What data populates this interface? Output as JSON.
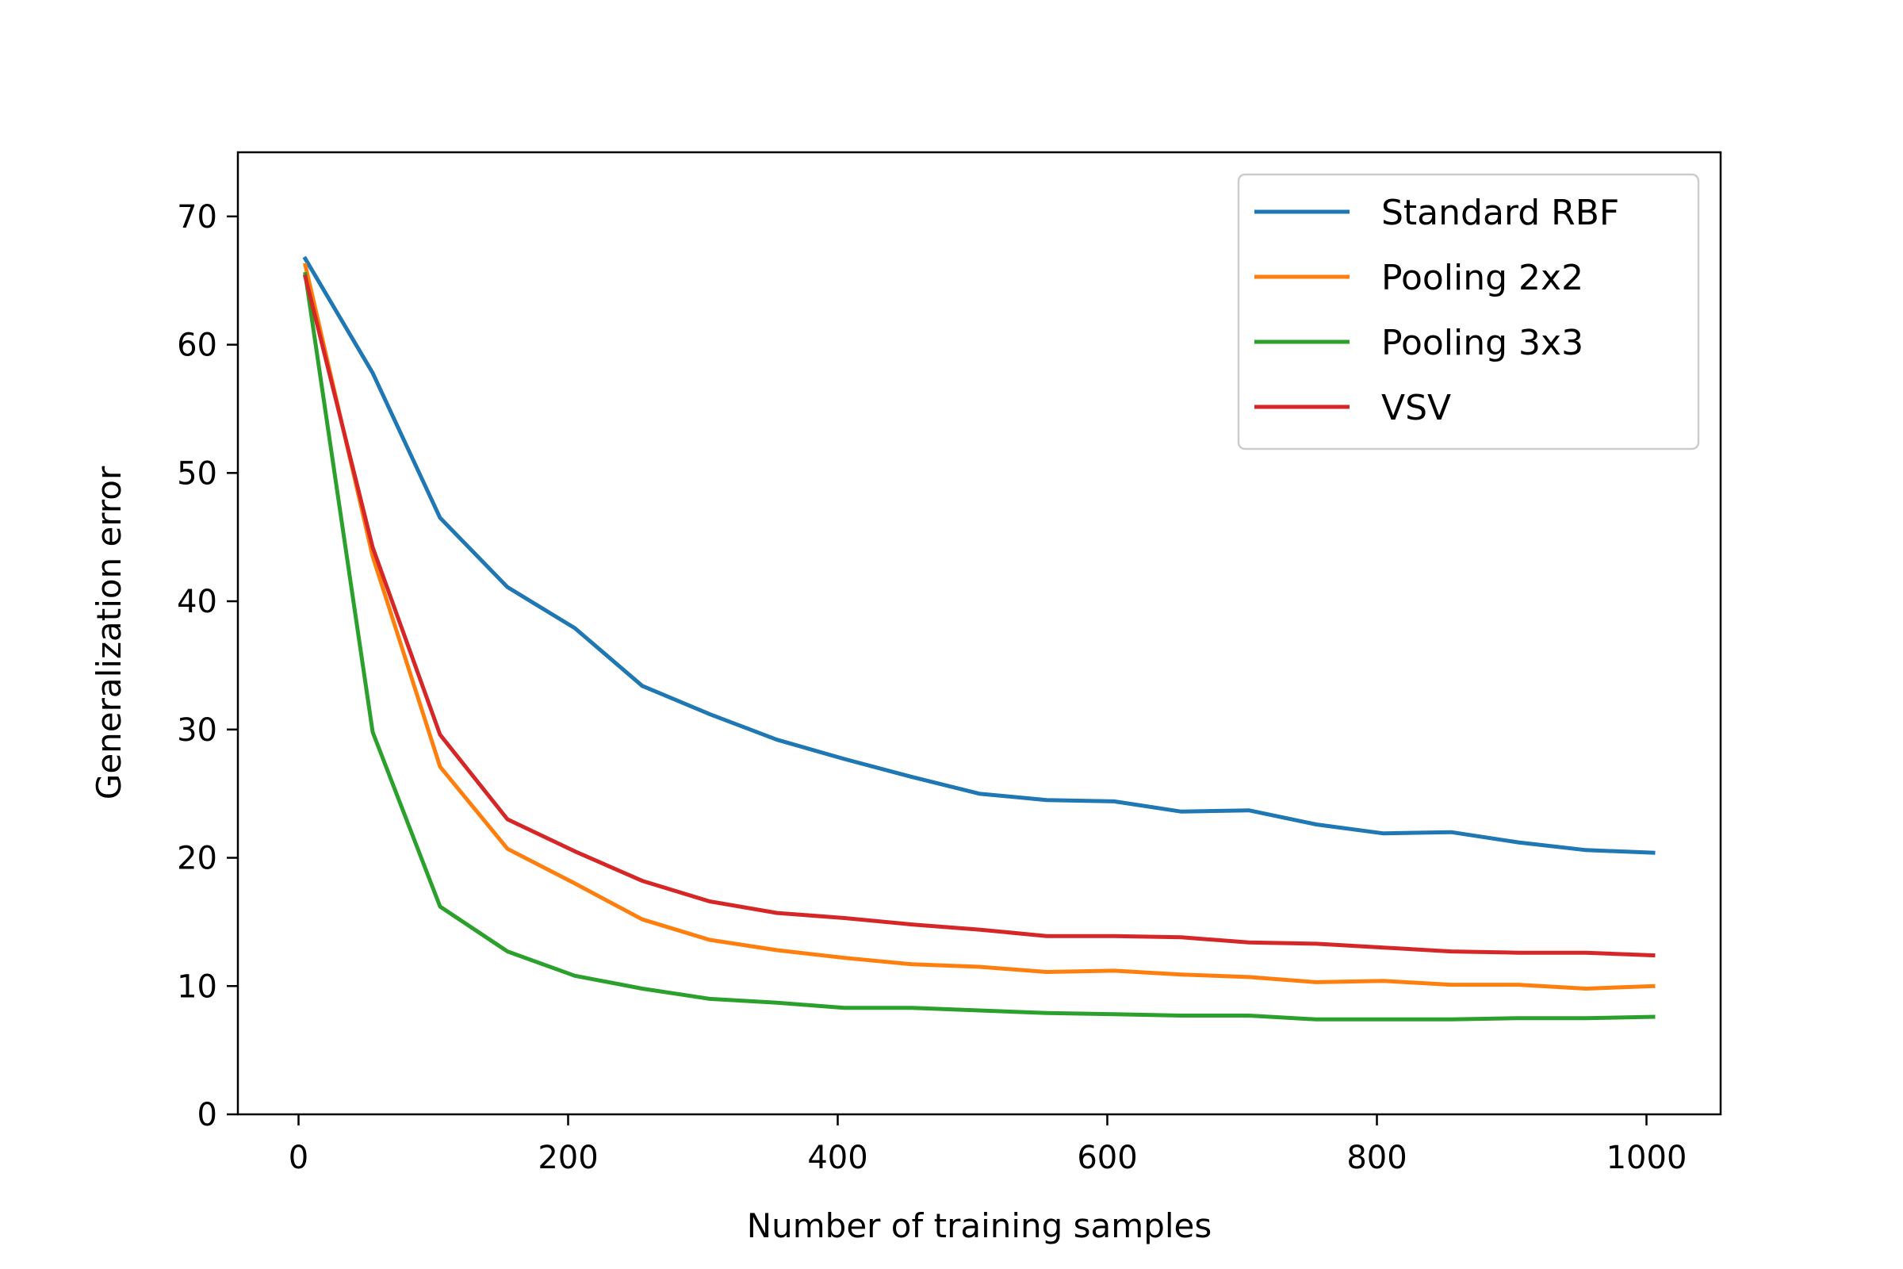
{
  "chart_data": {
    "type": "line",
    "title": "",
    "xlabel": "Number of training samples",
    "ylabel": "Generalization error",
    "xlim": [
      -45,
      1055
    ],
    "ylim": [
      0,
      75
    ],
    "xticks": [
      0,
      200,
      400,
      600,
      800,
      1000
    ],
    "yticks": [
      0,
      10,
      20,
      30,
      40,
      50,
      60,
      70
    ],
    "grid": false,
    "legend": "top-right",
    "x": [
      5,
      55,
      105,
      155,
      205,
      255,
      305,
      355,
      405,
      455,
      505,
      555,
      605,
      655,
      705,
      755,
      805,
      855,
      905,
      955,
      1005
    ],
    "series": [
      {
        "name": "Standard RBF",
        "color": "#1f77b4",
        "values": [
          66.7,
          57.8,
          46.5,
          41.1,
          37.9,
          33.4,
          31.2,
          29.2,
          27.7,
          26.3,
          25.0,
          24.5,
          24.4,
          23.6,
          23.7,
          22.6,
          21.9,
          22.0,
          21.2,
          20.6,
          20.4
        ]
      },
      {
        "name": "Pooling 2x2",
        "color": "#ff7f0e",
        "values": [
          66.2,
          43.5,
          27.1,
          20.7,
          18.0,
          15.2,
          13.6,
          12.8,
          12.2,
          11.7,
          11.5,
          11.1,
          11.2,
          10.9,
          10.7,
          10.3,
          10.4,
          10.1,
          10.1,
          9.8,
          10.0
        ]
      },
      {
        "name": "Pooling 3x3",
        "color": "#2ca02c",
        "values": [
          65.5,
          29.8,
          16.2,
          12.7,
          10.8,
          9.8,
          9.0,
          8.7,
          8.3,
          8.3,
          8.1,
          7.9,
          7.8,
          7.7,
          7.7,
          7.4,
          7.4,
          7.4,
          7.5,
          7.5,
          7.6
        ]
      },
      {
        "name": "VSV",
        "color": "#d62728",
        "values": [
          65.3,
          44.2,
          29.6,
          23.0,
          20.5,
          18.2,
          16.6,
          15.7,
          15.3,
          14.8,
          14.4,
          13.9,
          13.9,
          13.8,
          13.4,
          13.3,
          13.0,
          12.7,
          12.6,
          12.6,
          12.4
        ]
      }
    ]
  }
}
